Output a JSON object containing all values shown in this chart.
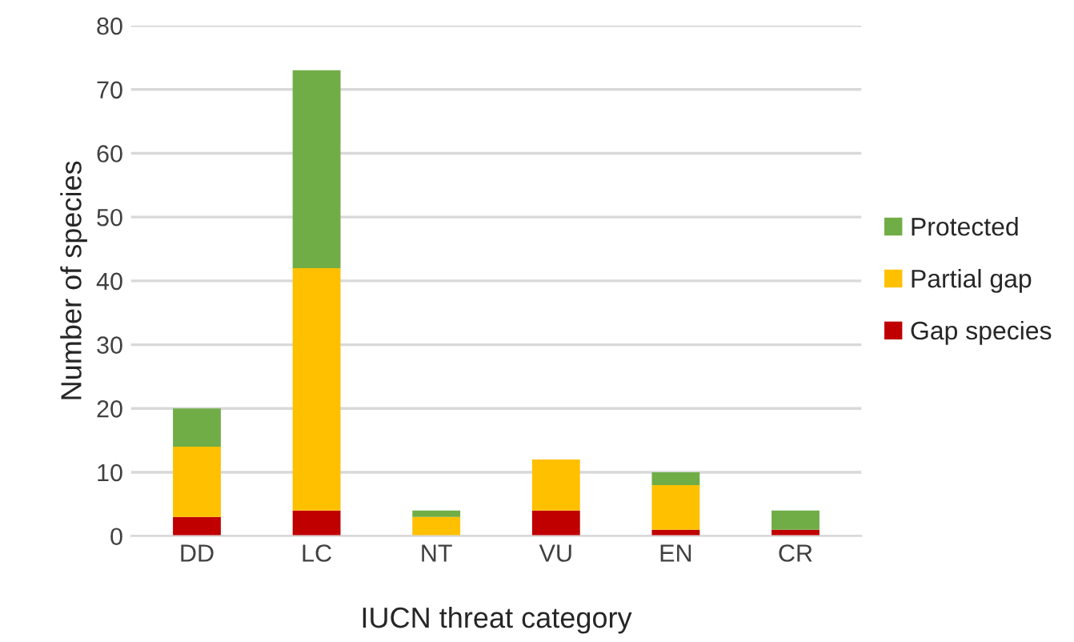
{
  "chart_data": {
    "type": "bar",
    "stacked": true,
    "xlabel": "IUCN threat category",
    "ylabel": "Number of species",
    "categories": [
      "DD",
      "LC",
      "NT",
      "VU",
      "EN",
      "CR"
    ],
    "series": [
      {
        "name": "Gap species",
        "color": "#c00000",
        "values": [
          3,
          4,
          0,
          4,
          1,
          1
        ]
      },
      {
        "name": "Partial gap",
        "color": "#ffc000",
        "values": [
          11,
          38,
          3,
          8,
          7,
          0
        ]
      },
      {
        "name": "Protected",
        "color": "#70ad47",
        "values": [
          6,
          31,
          1,
          0,
          2,
          3
        ]
      }
    ],
    "ylim": [
      0,
      80
    ],
    "yticks": [
      0,
      10,
      20,
      30,
      40,
      50,
      60,
      70,
      80
    ],
    "grid": "y",
    "legend": "right"
  }
}
